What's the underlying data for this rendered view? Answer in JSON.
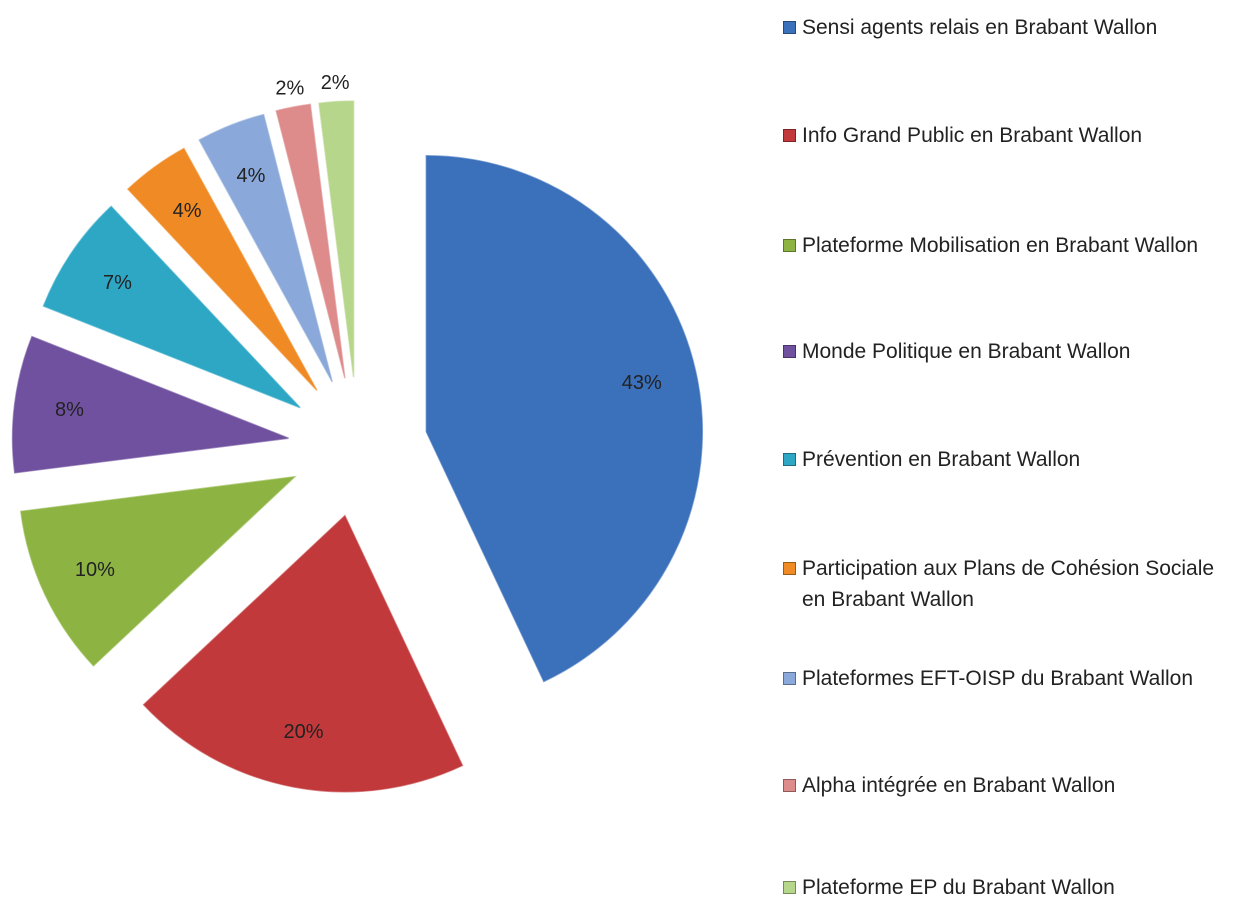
{
  "chart_data": {
    "type": "pie",
    "categories": [
      "Sensi agents relais en Brabant Wallon",
      "Info Grand Public en Brabant Wallon",
      "Plateforme Mobilisation en Brabant Wallon",
      "Monde Politique en Brabant Wallon",
      "Prévention en Brabant Wallon",
      "Participation aux Plans de Cohésion Sociale en Brabant Wallon",
      "Plateformes EFT-OISP du Brabant Wallon",
      "Alpha intégrée en Brabant Wallon",
      "Plateforme EP du Brabant Wallon"
    ],
    "values": [
      43,
      20,
      10,
      8,
      7,
      4,
      4,
      2,
      2
    ],
    "value_labels": [
      "43%",
      "20%",
      "10%",
      "8%",
      "7%",
      "4%",
      "4%",
      "2%",
      "2%"
    ],
    "colors": [
      "#3b70bb",
      "#c1393b",
      "#8db443",
      "#70519f",
      "#2ea7c5",
      "#f08a24",
      "#8aa8d9",
      "#de8b8b",
      "#b6d68b"
    ],
    "legend": "right"
  }
}
